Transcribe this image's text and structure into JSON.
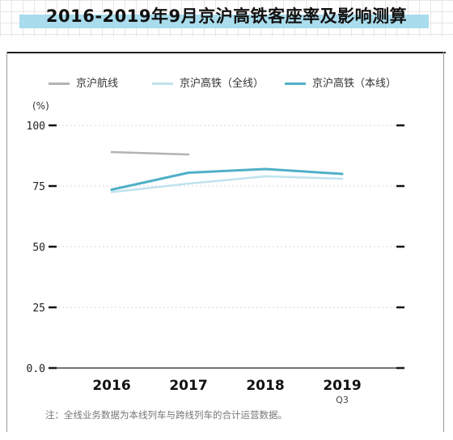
{
  "title": "2016-2019年9月京沪高铁客座率及影响测算",
  "unit_label": "(%)",
  "note": "注：全线业务数据为本线列车与跨线列车的合计运营数据。",
  "colors": {
    "title_bar": "#a9dcec",
    "series_air": "#b3b3b3",
    "series_full": "#bfe3ee",
    "series_own": "#4fb0c6"
  },
  "chart_data": {
    "type": "line",
    "categories": [
      "2016",
      "2017",
      "2018",
      "2019"
    ],
    "category_sublabels": [
      "",
      "",
      "",
      "Q3"
    ],
    "ylim": [
      0,
      100
    ],
    "yticks": [
      {
        "value": 100,
        "label": "100"
      },
      {
        "value": 75,
        "label": "75"
      },
      {
        "value": 50,
        "label": "50"
      },
      {
        "value": 25,
        "label": "25"
      },
      {
        "value": 0,
        "label": "0.0"
      }
    ],
    "grid": true,
    "legend_position": "top",
    "series": [
      {
        "name": "京沪航线",
        "color": "#b3b3b3",
        "values": [
          89,
          88,
          null,
          null
        ]
      },
      {
        "name": "京沪高铁（全线）",
        "color": "#bfe3ee",
        "values": [
          72.5,
          76,
          79,
          78
        ]
      },
      {
        "name": "京沪高铁（本线）",
        "color": "#4fb0c6",
        "values": [
          73.5,
          80.5,
          82,
          80
        ]
      }
    ]
  }
}
